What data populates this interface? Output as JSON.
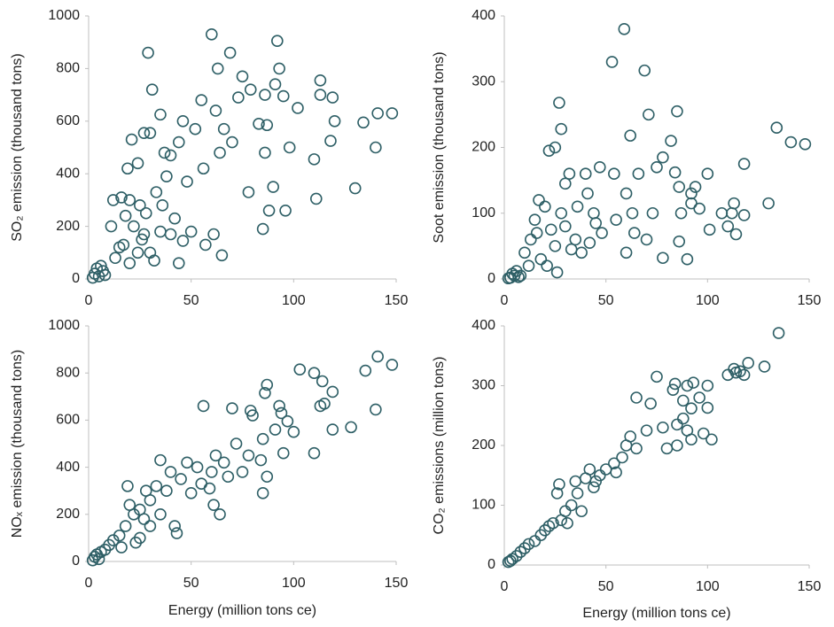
{
  "chart_data": [
    {
      "type": "scatter",
      "ylabel": "SO₂ emission (thousand tons)",
      "color": "#2e5f66",
      "xlim": [
        0,
        150
      ],
      "ylim": [
        0,
        1000
      ],
      "xticks": [
        0,
        50,
        100,
        150
      ],
      "yticks": [
        0,
        200,
        400,
        600,
        800,
        1000
      ],
      "x": [
        60,
        92,
        29,
        69,
        75,
        31,
        79,
        91,
        93,
        113,
        73,
        86,
        95,
        113,
        119,
        55,
        63,
        83,
        87,
        102,
        141,
        148,
        134,
        120,
        35,
        62,
        46,
        66,
        52,
        118,
        98,
        70,
        44,
        64,
        86,
        110,
        40,
        56,
        78,
        140,
        130,
        111,
        90,
        96,
        88,
        85,
        65,
        61,
        57,
        48,
        33,
        30,
        27,
        21,
        24,
        37,
        16,
        20,
        25,
        18,
        22,
        26,
        15,
        13,
        20,
        30,
        35,
        28,
        11,
        40,
        44,
        24,
        17,
        32,
        5,
        3,
        6,
        7,
        4,
        8,
        2,
        12,
        19,
        27,
        36,
        42,
        38,
        50,
        46
      ],
      "y": [
        930,
        905,
        860,
        860,
        770,
        720,
        720,
        740,
        800,
        755,
        690,
        700,
        695,
        700,
        690,
        680,
        800,
        590,
        585,
        650,
        630,
        630,
        595,
        600,
        625,
        640,
        600,
        570,
        570,
        525,
        500,
        520,
        520,
        480,
        480,
        455,
        470,
        420,
        330,
        500,
        345,
        305,
        350,
        260,
        260,
        190,
        90,
        170,
        130,
        370,
        330,
        555,
        555,
        530,
        440,
        480,
        310,
        300,
        280,
        240,
        200,
        150,
        120,
        80,
        60,
        100,
        180,
        250,
        200,
        170,
        60,
        100,
        130,
        70,
        10,
        20,
        50,
        30,
        40,
        15,
        5,
        300,
        420,
        170,
        280,
        230,
        390,
        180,
        145
      ]
    },
    {
      "type": "scatter",
      "ylabel": "Soot emission (thousand tons)",
      "color": "#2e5f66",
      "xlim": [
        0,
        150
      ],
      "ylim": [
        0,
        400
      ],
      "xticks": [
        0,
        50,
        100,
        150
      ],
      "yticks": [
        0,
        100,
        200,
        300,
        400
      ],
      "x": [
        59,
        53,
        69,
        62,
        27,
        28,
        71,
        85,
        134,
        141,
        148,
        82,
        118,
        78,
        100,
        54,
        84,
        92,
        87,
        73,
        96,
        107,
        113,
        112,
        118,
        130,
        101,
        110,
        114,
        86,
        90,
        78,
        60,
        55,
        44,
        40,
        32,
        25,
        22,
        30,
        20,
        17,
        15,
        13,
        10,
        12,
        18,
        25,
        30,
        35,
        38,
        42,
        48,
        64,
        70,
        63,
        92,
        94,
        86,
        21,
        26,
        28,
        36,
        45,
        5,
        3,
        6,
        4,
        7,
        8,
        2,
        16,
        23,
        33,
        41,
        47,
        75,
        66,
        60
      ],
      "y": [
        380,
        330,
        317,
        218,
        268,
        228,
        250,
        255,
        230,
        208,
        205,
        210,
        175,
        185,
        160,
        160,
        162,
        130,
        100,
        100,
        107,
        100,
        115,
        100,
        97,
        115,
        75,
        80,
        68,
        57,
        30,
        32,
        40,
        90,
        100,
        160,
        160,
        200,
        195,
        145,
        110,
        120,
        90,
        60,
        40,
        20,
        30,
        50,
        80,
        60,
        40,
        55,
        70,
        70,
        60,
        100,
        115,
        140,
        140,
        20,
        10,
        100,
        110,
        85,
        5,
        2,
        12,
        8,
        3,
        5,
        1,
        70,
        75,
        45,
        130,
        170,
        170,
        160,
        130
      ]
    },
    {
      "type": "scatter",
      "xlabel": "Energy (million tons ce)",
      "ylabel": "NOₓ emission (thousand tons)",
      "color": "#2e5f66",
      "xlim": [
        0,
        150
      ],
      "ylim": [
        0,
        1000
      ],
      "xticks": [
        0,
        50,
        100,
        150
      ],
      "yticks": [
        0,
        200,
        400,
        600,
        800,
        1000
      ],
      "x": [
        141,
        148,
        103,
        110,
        135,
        114,
        115,
        119,
        113,
        140,
        128,
        119,
        110,
        97,
        93,
        94,
        87,
        86,
        79,
        70,
        56,
        80,
        85,
        100,
        85,
        87,
        84,
        78,
        75,
        68,
        64,
        61,
        59,
        62,
        60,
        55,
        53,
        50,
        45,
        40,
        35,
        33,
        30,
        28,
        25,
        22,
        19,
        20,
        18,
        15,
        12,
        10,
        8,
        6,
        4,
        3,
        5,
        2,
        25,
        30,
        35,
        42,
        43,
        27,
        23,
        16,
        38,
        48,
        72,
        66,
        91,
        95
      ],
      "y": [
        870,
        835,
        815,
        800,
        810,
        765,
        670,
        720,
        660,
        645,
        570,
        560,
        460,
        595,
        660,
        630,
        750,
        715,
        640,
        650,
        660,
        620,
        520,
        550,
        290,
        360,
        430,
        450,
        380,
        360,
        200,
        240,
        310,
        450,
        380,
        330,
        400,
        290,
        350,
        380,
        430,
        320,
        260,
        300,
        220,
        200,
        320,
        240,
        150,
        110,
        90,
        70,
        50,
        40,
        30,
        20,
        10,
        5,
        100,
        150,
        200,
        150,
        120,
        180,
        80,
        60,
        300,
        420,
        500,
        420,
        560,
        460
      ]
    },
    {
      "type": "scatter",
      "xlabel": "Energy (million tons ce)",
      "ylabel": "CO₂ emissions (million tons)",
      "color": "#2e5f66",
      "xlim": [
        0,
        150
      ],
      "ylim": [
        0,
        400
      ],
      "xticks": [
        0,
        50,
        100,
        150
      ],
      "yticks": [
        0,
        100,
        200,
        300,
        400
      ],
      "x": [
        135,
        120,
        113,
        114,
        118,
        110,
        128,
        90,
        93,
        84,
        83,
        75,
        100,
        96,
        92,
        88,
        85,
        90,
        92,
        100,
        102,
        85,
        78,
        70,
        62,
        65,
        60,
        65,
        58,
        54,
        50,
        47,
        44,
        42,
        40,
        36,
        33,
        30,
        28,
        26,
        27,
        24,
        22,
        20,
        18,
        15,
        12,
        10,
        8,
        6,
        4,
        3,
        2,
        35,
        38,
        31,
        45,
        55,
        72,
        80,
        98,
        88,
        116
      ],
      "y": [
        388,
        338,
        328,
        322,
        318,
        318,
        332,
        300,
        305,
        303,
        293,
        315,
        300,
        280,
        262,
        245,
        235,
        225,
        210,
        263,
        210,
        200,
        230,
        225,
        215,
        280,
        200,
        195,
        180,
        170,
        160,
        150,
        130,
        160,
        145,
        120,
        100,
        90,
        75,
        120,
        135,
        70,
        65,
        58,
        50,
        40,
        35,
        28,
        22,
        15,
        10,
        7,
        5,
        140,
        90,
        70,
        140,
        155,
        270,
        195,
        220,
        275,
        324
      ]
    }
  ]
}
